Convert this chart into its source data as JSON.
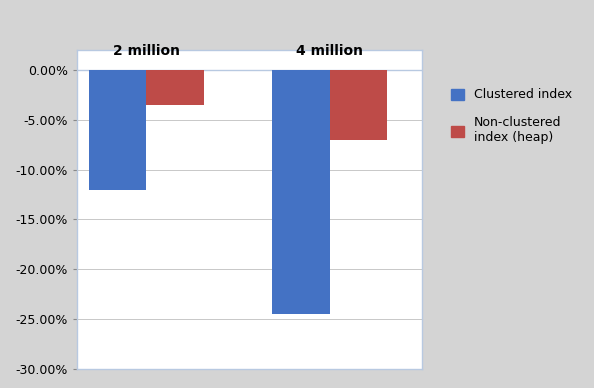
{
  "groups": [
    "2 million",
    "4 million"
  ],
  "clustered_values": [
    -12.0,
    -24.5
  ],
  "nonclustered_values": [
    -3.5,
    -7.0
  ],
  "clustered_color": "#4472C4",
  "nonclustered_color": "#BE4B48",
  "ylim_min": -0.3,
  "ylim_max": 0.02,
  "ytick_vals": [
    0.0,
    -0.05,
    -0.1,
    -0.15,
    -0.2,
    -0.25,
    -0.3
  ],
  "ytick_labels": [
    "0.00%",
    "-5.00%",
    "-10.00%",
    "-15.00%",
    "-20.00%",
    "-25.00%",
    "-30.00%"
  ],
  "legend_clustered": "Clustered index",
  "legend_nonclustered": "Non-clustered\nindex (heap)",
  "background_color": "#D4D4D4",
  "plot_background": "#FFFFFF",
  "bar_width": 0.25,
  "group_positions": [
    0.3,
    1.1
  ]
}
